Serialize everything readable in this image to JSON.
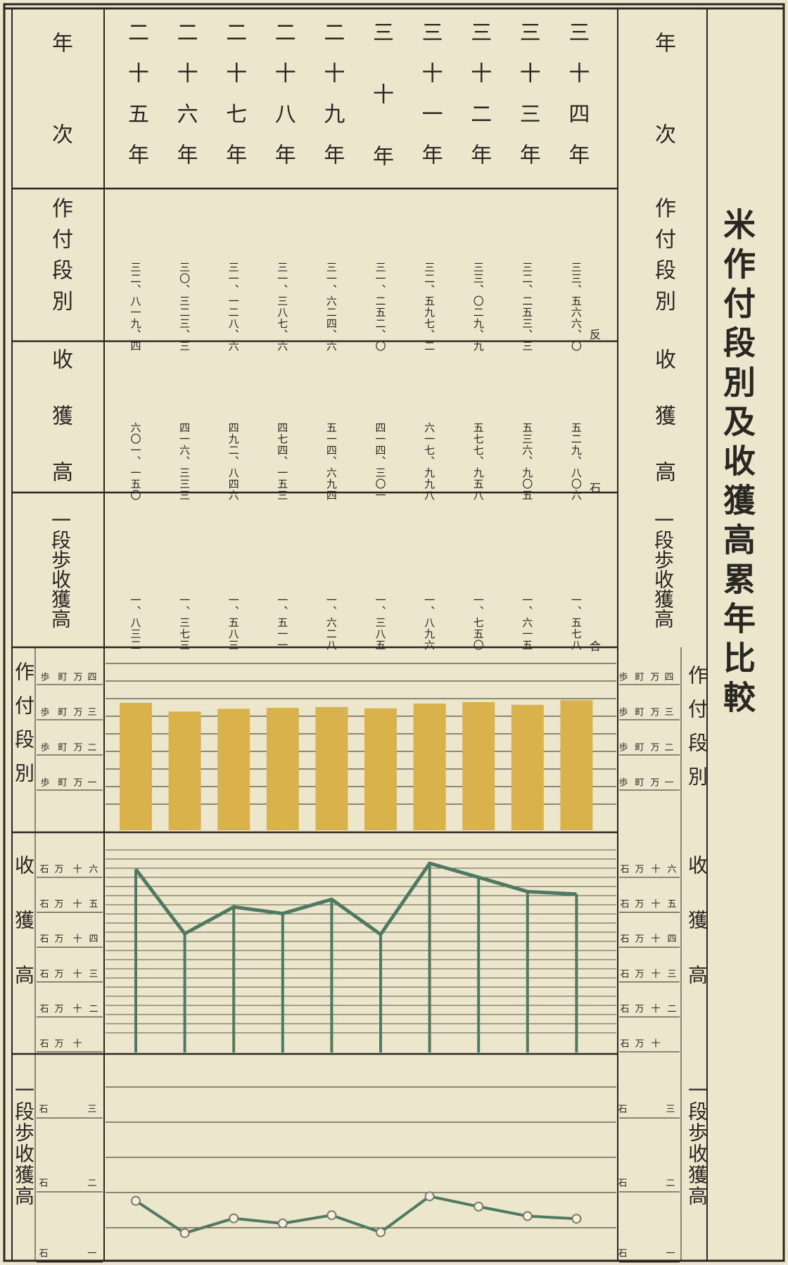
{
  "title": "米作付段別及收獲高累年比較",
  "row_labels": {
    "year": "年次",
    "area": "作付段別",
    "harvest": "收獲高",
    "per_tan": "一段歩收獲高"
  },
  "units": {
    "area": "反",
    "harvest": "石",
    "per_tan": "合"
  },
  "years": [
    "二十五年",
    "二十六年",
    "二十七年",
    "二十八年",
    "二十九年",
    "三十年",
    "三十一年",
    "三十二年",
    "三十三年",
    "三十四年"
  ],
  "area_values_text": [
    "三二、八一九、四",
    "三〇、三二三、三",
    "三一、一二八、六",
    "三一、三八七、六",
    "三一、六二四、六",
    "三一、二五二、〇",
    "三二、五九七、二",
    "三三、〇二九、九",
    "三二、二五三、三",
    "三三、五六六、〇"
  ],
  "harvest_values_text": [
    "六〇一、一五〇",
    "四一六、三三三",
    "四九二、八四六",
    "四七四、一五三",
    "五一四、六九四",
    "四一四、三〇一",
    "六一七、九九八",
    "五七七、九五八",
    "五三六、九〇五",
    "五二九、八〇六"
  ],
  "per_tan_values_text": [
    "一、八三二",
    "一、三七三",
    "一、五八三",
    "一、五一一",
    "一、六二八",
    "一、三八五",
    "一、八九六",
    "一、七五〇",
    "一、六一五",
    "一、五七八"
  ],
  "scales": {
    "area": [
      "四",
      "万",
      "町",
      "歩",
      "三",
      "万",
      "町",
      "歩",
      "二",
      "万",
      "町",
      "歩",
      "一",
      "万",
      "町",
      "歩"
    ],
    "area_ticks": [
      {
        "num": "四",
        "u1": "万",
        "u2": "町",
        "u3": "歩"
      },
      {
        "num": "三",
        "u1": "万",
        "u2": "町",
        "u3": "歩"
      },
      {
        "num": "二",
        "u1": "万",
        "u2": "町",
        "u3": "歩"
      },
      {
        "num": "一",
        "u1": "万",
        "u2": "町",
        "u3": "歩"
      }
    ],
    "harvest_ticks": [
      {
        "num": "六",
        "u0": "十",
        "u1": "万",
        "u2": "石"
      },
      {
        "num": "五",
        "u0": "十",
        "u1": "万",
        "u2": "石"
      },
      {
        "num": "四",
        "u0": "十",
        "u1": "万",
        "u2": "石"
      },
      {
        "num": "三",
        "u0": "十",
        "u1": "万",
        "u2": "石"
      },
      {
        "num": "二",
        "u0": "十",
        "u1": "万",
        "u2": "石"
      },
      {
        "num": "",
        "u0": "十",
        "u1": "万",
        "u2": "石"
      }
    ],
    "per_tan_ticks": [
      {
        "num": "三",
        "u": "石"
      },
      {
        "num": "二",
        "u": "石"
      },
      {
        "num": "一",
        "u": "石"
      }
    ]
  },
  "colors": {
    "paper": "#ece6cc",
    "bar": "#d9b24c",
    "line": "#4f7a62",
    "ink": "#2a2622"
  },
  "chart_data": [
    {
      "type": "bar",
      "ylabel": "作付段別",
      "categories": [
        "二十五年",
        "二十六年",
        "二十七年",
        "二十八年",
        "二十九年",
        "三十年",
        "三十一年",
        "三十二年",
        "三十三年",
        "三十四年"
      ],
      "values": [
        32819.4,
        30323.3,
        31128.6,
        31387.6,
        31624.6,
        31252.0,
        32597.2,
        33029.9,
        32253.3,
        33566.0
      ],
      "ylim": [
        15000,
        40000
      ],
      "yticks": [
        10000,
        20000,
        30000,
        40000
      ]
    },
    {
      "type": "line",
      "ylabel": "收獲高",
      "categories": [
        "二十五年",
        "二十六年",
        "二十七年",
        "二十八年",
        "二十九年",
        "三十年",
        "三十一年",
        "三十二年",
        "三十三年",
        "三十四年"
      ],
      "values": [
        601150,
        416333,
        492846,
        474153,
        514694,
        414301,
        617998,
        577958,
        536905,
        529806
      ],
      "ylim": [
        100000,
        700000
      ],
      "yticks": [
        100000,
        200000,
        300000,
        400000,
        500000,
        600000
      ]
    },
    {
      "type": "line",
      "ylabel": "一段歩收獲高",
      "categories": [
        "二十五年",
        "二十六年",
        "二十七年",
        "二十八年",
        "二十九年",
        "三十年",
        "三十一年",
        "三十二年",
        "三十三年",
        "三十四年"
      ],
      "values": [
        1.832,
        1.373,
        1.583,
        1.511,
        1.628,
        1.385,
        1.896,
        1.75,
        1.615,
        1.578
      ],
      "ylim": [
        1.0,
        3.0
      ],
      "yticks": [
        1,
        2,
        3
      ]
    }
  ]
}
